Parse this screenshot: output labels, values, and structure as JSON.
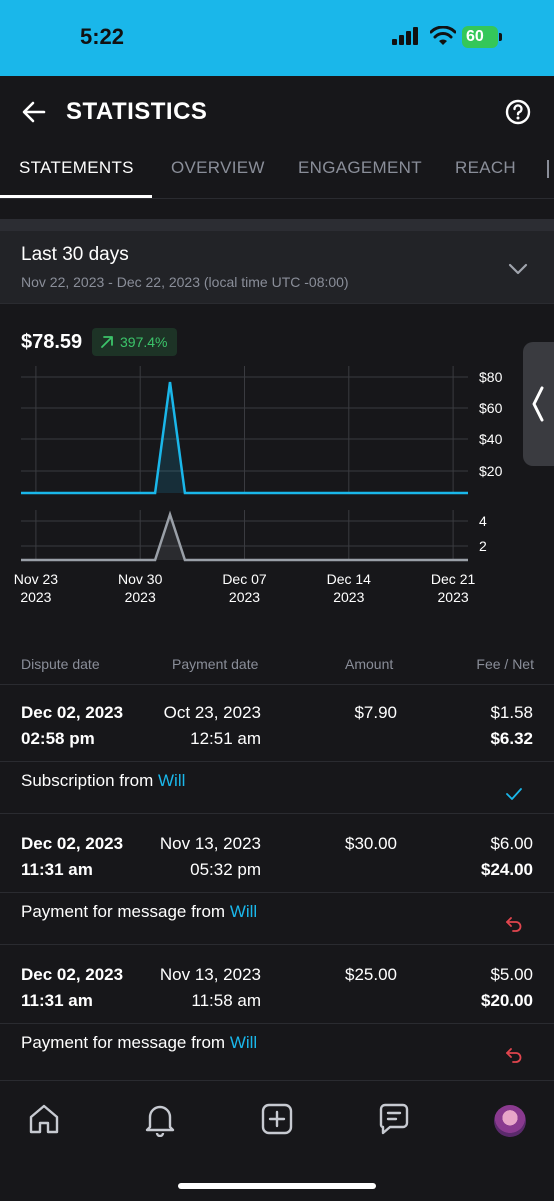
{
  "status_bar": {
    "time": "5:22",
    "battery": "60"
  },
  "header": {
    "title": "STATISTICS",
    "back_icon": "arrow-left-icon",
    "help_icon": "question-circle-icon"
  },
  "tabs": [
    {
      "label": "STATEMENTS",
      "active": true
    },
    {
      "label": "OVERVIEW",
      "active": false
    },
    {
      "label": "ENGAGEMENT",
      "active": false
    },
    {
      "label": "REACH",
      "active": false
    }
  ],
  "period": {
    "title": "Last 30 days",
    "range": "Nov 22, 2023 - Dec 22, 2023 (local time UTC -08:00)"
  },
  "summary": {
    "total": "$78.59",
    "change": "397.4%",
    "change_color": "#3cc46a"
  },
  "chart_data": [
    {
      "type": "line",
      "title": "",
      "ylabel": "",
      "x": [
        "Nov 22",
        "Nov 23",
        "Nov 24",
        "Nov 25",
        "Nov 26",
        "Nov 27",
        "Nov 28",
        "Nov 29",
        "Nov 30",
        "Dec 01",
        "Dec 02",
        "Dec 03",
        "Dec 04",
        "Dec 05",
        "Dec 06",
        "Dec 07",
        "Dec 08",
        "Dec 09",
        "Dec 10",
        "Dec 11",
        "Dec 12",
        "Dec 13",
        "Dec 14",
        "Dec 15",
        "Dec 16",
        "Dec 17",
        "Dec 18",
        "Dec 19",
        "Dec 20",
        "Dec 21",
        "Dec 22"
      ],
      "series": [
        {
          "values": [
            0,
            0,
            0,
            0,
            0,
            0,
            0,
            0,
            0,
            0,
            78.59,
            0,
            0,
            0,
            0,
            0,
            0,
            0,
            0,
            0,
            0,
            0,
            0,
            0,
            0,
            0,
            0,
            0,
            0,
            0,
            0
          ],
          "color": "#1ab7ea"
        }
      ],
      "ylim": [
        0,
        90
      ],
      "yticks": [
        "$20",
        "$40",
        "$60",
        "$80"
      ]
    },
    {
      "type": "line",
      "title": "",
      "ylabel": "",
      "x": [
        "Nov 22",
        "Nov 23",
        "Nov 24",
        "Nov 25",
        "Nov 26",
        "Nov 27",
        "Nov 28",
        "Nov 29",
        "Nov 30",
        "Dec 01",
        "Dec 02",
        "Dec 03",
        "Dec 04",
        "Dec 05",
        "Dec 06",
        "Dec 07",
        "Dec 08",
        "Dec 09",
        "Dec 10",
        "Dec 11",
        "Dec 12",
        "Dec 13",
        "Dec 14",
        "Dec 15",
        "Dec 16",
        "Dec 17",
        "Dec 18",
        "Dec 19",
        "Dec 20",
        "Dec 21",
        "Dec 22"
      ],
      "series": [
        {
          "values": [
            0,
            0,
            0,
            0,
            0,
            0,
            0,
            0,
            0,
            0,
            5,
            0,
            0,
            0,
            0,
            0,
            0,
            0,
            0,
            0,
            0,
            0,
            0,
            0,
            0,
            0,
            0,
            0,
            0,
            0,
            0
          ],
          "color": "#9aa0a8"
        }
      ],
      "ylim": [
        0,
        5.5
      ],
      "yticks": [
        "2",
        "4"
      ],
      "xtick_labels": [
        {
          "day": "Nov 23",
          "year": "2023"
        },
        {
          "day": "Nov 30",
          "year": "2023"
        },
        {
          "day": "Dec 07",
          "year": "2023"
        },
        {
          "day": "Dec 14",
          "year": "2023"
        },
        {
          "day": "Dec 21",
          "year": "2023"
        }
      ],
      "grid": true
    }
  ],
  "table": {
    "headers": {
      "dispute": "Dispute date",
      "payment": "Payment date",
      "amount": "Amount",
      "fee_net": "Fee / Net"
    },
    "rows": [
      {
        "dispute_date": "Dec 02, 2023",
        "dispute_time": "02:58 pm",
        "payment_date": "Oct 23, 2023",
        "payment_time": "12:51 am",
        "amount": "$7.90",
        "fee": "$1.58",
        "net": "$6.32",
        "desc": "Subscription from",
        "user": "Will",
        "status_icon": "checkmark-icon",
        "status_color": "#1ab7ea"
      },
      {
        "dispute_date": "Dec 02, 2023",
        "dispute_time": "11:31 am",
        "payment_date": "Nov 13, 2023",
        "payment_time": "05:32 pm",
        "amount": "$30.00",
        "fee": "$6.00",
        "net": "$24.00",
        "desc": "Payment for message from",
        "user": "Will",
        "status_icon": "undo-icon",
        "status_color": "#e0454e"
      },
      {
        "dispute_date": "Dec 02, 2023",
        "dispute_time": "11:31 am",
        "payment_date": "Nov 13, 2023",
        "payment_time": "11:58 am",
        "amount": "$25.00",
        "fee": "$5.00",
        "net": "$20.00",
        "desc": "Payment for message from",
        "user": "Will",
        "status_icon": "undo-icon",
        "status_color": "#e0454e"
      }
    ]
  },
  "bottom_nav": [
    "home-icon",
    "bell-icon",
    "plus-square-icon",
    "chat-icon",
    "avatar"
  ],
  "colors": {
    "accent": "#1ab7ea",
    "background": "#17171a"
  }
}
